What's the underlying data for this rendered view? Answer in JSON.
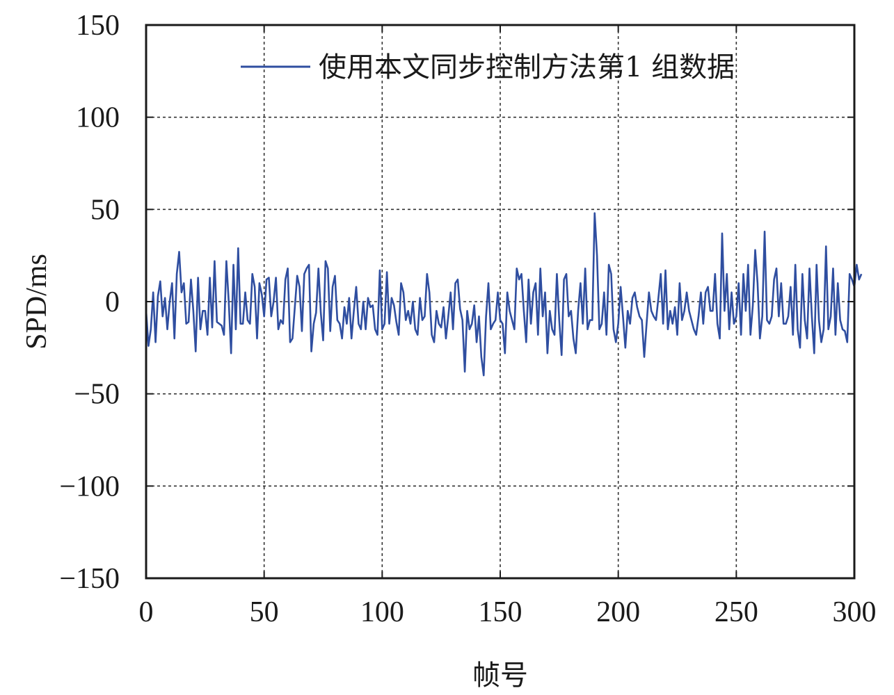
{
  "chart_data": {
    "type": "line",
    "xlabel": "帧号",
    "ylabel": "SPD/ms",
    "xlim": [
      0,
      300
    ],
    "ylim": [
      -150,
      150
    ],
    "xticks": [
      0,
      50,
      100,
      150,
      200,
      250,
      300
    ],
    "yticks": [
      150,
      100,
      50,
      0,
      -50,
      -100,
      -150
    ],
    "xtick_labels": [
      "0",
      "50",
      "100",
      "150",
      "200",
      "250",
      "300"
    ],
    "ytick_labels": [
      "150",
      "100",
      "50",
      "0",
      "−50",
      "−100",
      "−150"
    ],
    "grid": true,
    "legend_position": "top-right",
    "colors": {
      "series": "#2f4ea0",
      "axes": "#1a1a1a"
    },
    "series": [
      {
        "name": "使用本文同步控制方法第1 组数据",
        "values": [
          -5,
          -24,
          -15,
          5,
          -22,
          3,
          11,
          -8,
          2,
          -15,
          0,
          10,
          -20,
          15,
          27,
          5,
          10,
          -12,
          -11,
          12,
          -5,
          -27,
          13,
          -15,
          -5,
          -5,
          -18,
          13,
          -14,
          22,
          -11,
          -12,
          -13,
          -18,
          22,
          0,
          -28,
          20,
          -15,
          29,
          -12,
          -12,
          5,
          -10,
          -12,
          15,
          8,
          -20,
          10,
          4,
          -8,
          12,
          13,
          -8,
          0,
          13,
          -15,
          -10,
          -12,
          12,
          18,
          -22,
          -20,
          -3,
          14,
          8,
          -16,
          15,
          18,
          20,
          -27,
          -12,
          -6,
          18,
          -6,
          -21,
          22,
          18,
          -16,
          8,
          14,
          -10,
          -12,
          -20,
          -3,
          -12,
          2,
          -20,
          -5,
          8,
          -12,
          -15,
          0,
          -15,
          2,
          -3,
          -2,
          -15,
          -18,
          17,
          -15,
          -12,
          16,
          -12,
          2,
          -2,
          -11,
          -18,
          10,
          5,
          -10,
          -5,
          -12,
          0,
          -15,
          -18,
          2,
          -10,
          -8,
          15,
          5,
          -18,
          -22,
          -5,
          -12,
          -14,
          -3,
          -20,
          -8,
          5,
          -15,
          10,
          12,
          -4,
          -10,
          -38,
          -5,
          -15,
          -12,
          -2,
          -22,
          -8,
          -30,
          -40,
          -8,
          10,
          -15,
          -12,
          -10,
          5,
          -10,
          -12,
          -28,
          5,
          -5,
          -10,
          -15,
          18,
          12,
          15,
          -5,
          -22,
          12,
          -12,
          5,
          10,
          -18,
          18,
          -8,
          5,
          -28,
          -5,
          -15,
          -18,
          15,
          -10,
          -29,
          12,
          15,
          -8,
          -5,
          -20,
          -28,
          -5,
          10,
          -12,
          18,
          -15,
          -10,
          -10,
          48,
          25,
          -15,
          -12,
          5,
          -18,
          20,
          15,
          -15,
          -22,
          -12,
          8,
          -8,
          -25,
          -5,
          -12,
          2,
          5,
          -3,
          -8,
          -10,
          -30,
          -12,
          5,
          -5,
          -8,
          -10,
          2,
          15,
          -12,
          17,
          -15,
          -5,
          -12,
          -3,
          -18,
          10,
          -10,
          -5,
          5,
          -5,
          -10,
          -15,
          -18,
          -8,
          5,
          -12,
          5,
          8,
          -5,
          -5,
          15,
          -12,
          -20,
          37,
          -5,
          15,
          -15,
          5,
          -12,
          -8,
          10,
          -18,
          15,
          -5,
          20,
          -18,
          -2,
          28,
          10,
          -20,
          -8,
          38,
          -10,
          -12,
          -8,
          12,
          18,
          -8,
          10,
          -12,
          -12,
          -8,
          8,
          -18,
          20,
          -15,
          -25,
          15,
          -10,
          -20,
          18,
          -8,
          -28,
          20,
          -10,
          -22,
          -15,
          30,
          -15,
          -8,
          18,
          -18,
          10,
          -10,
          -15,
          -16,
          -22,
          15,
          12,
          8,
          20,
          12,
          15
        ]
      }
    ]
  }
}
